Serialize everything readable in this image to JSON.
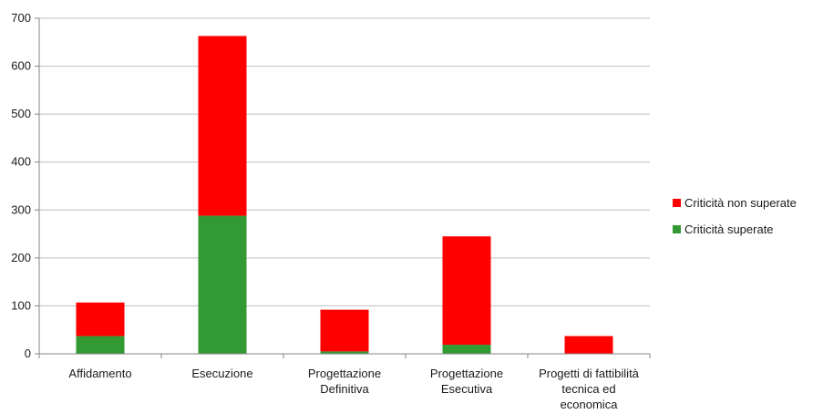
{
  "chart_data": {
    "type": "bar",
    "stacked": true,
    "title": "",
    "xlabel": "",
    "ylabel": "",
    "ylim": [
      0,
      700
    ],
    "yticks": [
      0,
      100,
      200,
      300,
      400,
      500,
      600,
      700
    ],
    "grid": true,
    "legend_position": "right",
    "categories": [
      [
        "Affidamento"
      ],
      [
        "Esecuzione"
      ],
      [
        "Progettazione",
        "Definitiva"
      ],
      [
        "Progettazione",
        "Esecutiva"
      ],
      [
        "Progetti di fattibilità",
        "tecnica ed",
        "economica"
      ]
    ],
    "series": [
      {
        "name": "Criticità superate",
        "color": "#339933",
        "values": [
          37,
          288,
          5,
          19,
          0
        ]
      },
      {
        "name": "Criticità non superate",
        "color": "#ff0000",
        "values": [
          70,
          375,
          87,
          226,
          37
        ]
      }
    ],
    "legend_order": [
      "Criticità non superate",
      "Criticità superate"
    ]
  }
}
